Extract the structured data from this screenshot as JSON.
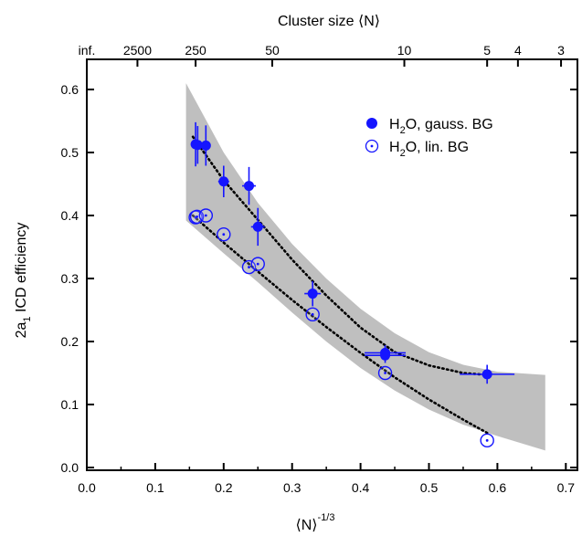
{
  "chart_data": {
    "type": "scatter",
    "xlabel_main": "⟨N⟩",
    "xlabel_sup": "-1/3",
    "ylabel_main": "2a",
    "ylabel_sub": "1",
    "ylabel_rest": " ICD efficiency",
    "top_axis_title": "Cluster size ⟨N⟩",
    "xlim": [
      0.0,
      0.7
    ],
    "ylim": [
      0.0,
      0.62
    ],
    "x_ticks": [
      0.0,
      0.1,
      0.2,
      0.3,
      0.4,
      0.5,
      0.6,
      0.7
    ],
    "x_tick_labels": [
      "0.0",
      "0.1",
      "0.2",
      "0.3",
      "0.4",
      "0.5",
      "0.6",
      "0.7"
    ],
    "y_ticks": [
      0.0,
      0.1,
      0.2,
      0.3,
      0.4,
      0.5,
      0.6
    ],
    "y_tick_labels": [
      "0.0",
      "0.1",
      "0.2",
      "0.3",
      "0.4",
      "0.5",
      "0.6"
    ],
    "top_ticks": [
      {
        "label": "inf.",
        "x": 0.0
      },
      {
        "label": "2500",
        "x": 0.074
      },
      {
        "label": "250",
        "x": 0.159
      },
      {
        "label": "50",
        "x": 0.271
      },
      {
        "label": "10",
        "x": 0.464
      },
      {
        "label": "5",
        "x": 0.585
      },
      {
        "label": "4",
        "x": 0.63
      },
      {
        "label": "3",
        "x": 0.693
      }
    ],
    "legend": [
      {
        "label_main": "H",
        "label_sub": "2",
        "label_rest": "O, gauss. BG",
        "marker": "filled-circle"
      },
      {
        "label_main": "H",
        "label_sub": "2",
        "label_rest": "O, lin. BG",
        "marker": "open-circle-dot"
      }
    ],
    "legend_position": "top-right",
    "series": [
      {
        "name": "H2O, gauss. BG",
        "marker": "filled",
        "color": "#1515ff",
        "points": [
          {
            "x": 0.159,
            "y": 0.513,
            "xerr": 0.006,
            "yerr": 0.035
          },
          {
            "x": 0.162,
            "y": 0.512,
            "xerr": 0.006,
            "yerr": 0.03
          },
          {
            "x": 0.174,
            "y": 0.511,
            "xerr": 0.006,
            "yerr": 0.032
          },
          {
            "x": 0.2,
            "y": 0.454,
            "xerr": 0.008,
            "yerr": 0.025
          },
          {
            "x": 0.237,
            "y": 0.447,
            "xerr": 0.01,
            "yerr": 0.03
          },
          {
            "x": 0.25,
            "y": 0.382,
            "xerr": 0.01,
            "yerr": 0.03
          },
          {
            "x": 0.33,
            "y": 0.276,
            "xerr": 0.012,
            "yerr": 0.02
          },
          {
            "x": 0.436,
            "y": 0.182,
            "xerr": 0.03,
            "yerr": 0.012
          },
          {
            "x": 0.436,
            "y": 0.178,
            "xerr": 0.03,
            "yerr": 0.012
          },
          {
            "x": 0.585,
            "y": 0.148,
            "xerr": 0.04,
            "yerr": 0.015
          }
        ]
      },
      {
        "name": "H2O, lin. BG",
        "marker": "open",
        "color": "#1515ff",
        "points": [
          {
            "x": 0.159,
            "y": 0.397
          },
          {
            "x": 0.161,
            "y": 0.398
          },
          {
            "x": 0.174,
            "y": 0.4
          },
          {
            "x": 0.2,
            "y": 0.37
          },
          {
            "x": 0.237,
            "y": 0.318
          },
          {
            "x": 0.25,
            "y": 0.323
          },
          {
            "x": 0.33,
            "y": 0.243
          },
          {
            "x": 0.436,
            "y": 0.15
          },
          {
            "x": 0.585,
            "y": 0.043
          }
        ]
      }
    ],
    "fit_lines": [
      {
        "name": "gauss fit",
        "style": "dotted",
        "color": "#000000",
        "points": [
          [
            0.155,
            0.525
          ],
          [
            0.2,
            0.456
          ],
          [
            0.25,
            0.393
          ],
          [
            0.3,
            0.33
          ],
          [
            0.35,
            0.273
          ],
          [
            0.4,
            0.222
          ],
          [
            0.45,
            0.183
          ],
          [
            0.5,
            0.162
          ],
          [
            0.55,
            0.15
          ],
          [
            0.585,
            0.147
          ]
        ]
      },
      {
        "name": "linear fit",
        "style": "dotted",
        "color": "#000000",
        "points": [
          [
            0.155,
            0.4
          ],
          [
            0.2,
            0.357
          ],
          [
            0.25,
            0.311
          ],
          [
            0.3,
            0.266
          ],
          [
            0.35,
            0.223
          ],
          [
            0.4,
            0.182
          ],
          [
            0.45,
            0.143
          ],
          [
            0.5,
            0.108
          ],
          [
            0.55,
            0.076
          ],
          [
            0.585,
            0.055
          ]
        ]
      }
    ],
    "band": {
      "color": "#bfbfbf",
      "upper": [
        [
          0.145,
          0.61
        ],
        [
          0.2,
          0.5
        ],
        [
          0.25,
          0.42
        ],
        [
          0.3,
          0.355
        ],
        [
          0.35,
          0.3
        ],
        [
          0.4,
          0.252
        ],
        [
          0.45,
          0.213
        ],
        [
          0.5,
          0.183
        ],
        [
          0.55,
          0.163
        ],
        [
          0.6,
          0.152
        ],
        [
          0.67,
          0.147
        ]
      ],
      "lower": [
        [
          0.67,
          0.027
        ],
        [
          0.6,
          0.05
        ],
        [
          0.55,
          0.068
        ],
        [
          0.5,
          0.092
        ],
        [
          0.45,
          0.122
        ],
        [
          0.4,
          0.158
        ],
        [
          0.35,
          0.2
        ],
        [
          0.3,
          0.246
        ],
        [
          0.25,
          0.294
        ],
        [
          0.2,
          0.34
        ],
        [
          0.145,
          0.392
        ]
      ]
    }
  }
}
